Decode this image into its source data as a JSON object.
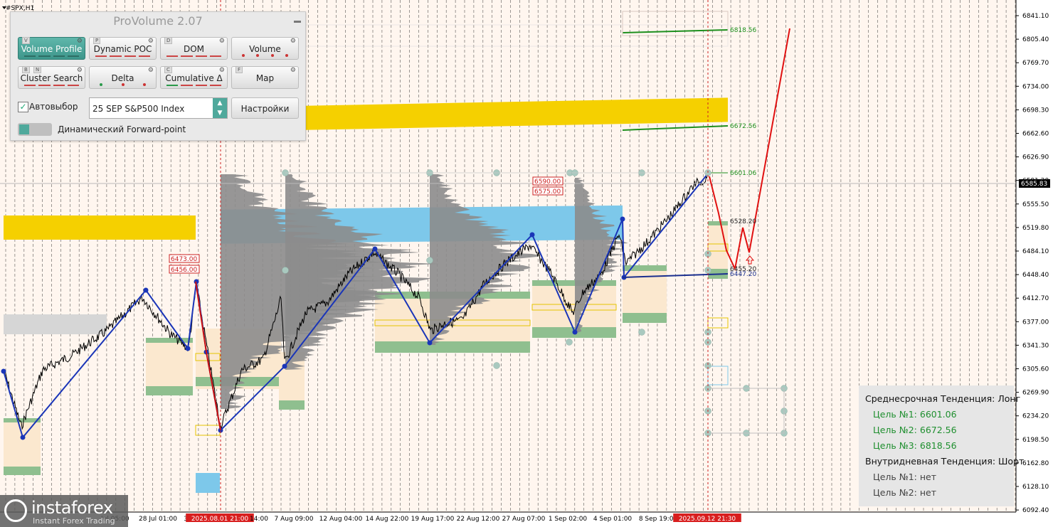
{
  "symbol": "#SPX,H1",
  "panel": {
    "title": "ProVolume 2.07",
    "buttons": [
      {
        "key": "V",
        "label": "Volume Profile"
      },
      {
        "key": "P",
        "label": "Dynamic POC"
      },
      {
        "key": "D",
        "label": "DOM"
      },
      {
        "key": "",
        "label": "Volume"
      },
      {
        "key": "B",
        "key2": "N",
        "label": "Cluster Search"
      },
      {
        "key": "",
        "label": "Delta"
      },
      {
        "key": "C",
        "label": "Cumulative Δ"
      },
      {
        "key": "F",
        "label": "Map"
      }
    ],
    "autoselect_label": "Автовыбор",
    "instrument": "25 SEP S&P500 Index",
    "settings_label": "Настройки",
    "forward_label": "Динамический Forward-point"
  },
  "price_axis": [
    "6841.10",
    "6805.40",
    "6769.70",
    "6734.00",
    "6698.30",
    "6662.60",
    "6626.90",
    "6591.20",
    "6555.50",
    "6519.80",
    "6484.10",
    "6448.40",
    "6412.70",
    "6377.00",
    "6341.30",
    "6305.60",
    "6269.90",
    "6234.20",
    "6198.50",
    "6162.80",
    "6128.10",
    "6092.40"
  ],
  "current_price": "6585.83",
  "time_axis": [
    "28 Jul 01:00",
    "30",
    "2025.08.01 21:00",
    "14:00",
    "7 Aug 09:00",
    "12 Aug 04:00",
    "14 Aug 22:00",
    "19 Aug 17:00",
    "22 Aug 12:00",
    "27 Aug 07:00",
    "1 Sep 02:00",
    "4 Sep 01:00",
    "8 Sep 19:00",
    "2025.09.12 21:30"
  ],
  "time_axis_partial_left": "Jul 05:00",
  "levels": {
    "target3": "6818.56",
    "target2": "6672.56",
    "target1": "6601.06",
    "l6528": "6528.20",
    "l6455": "6455.20",
    "l6447": "6447.20",
    "r6590": "6590.00",
    "r6575": "6575.00",
    "r6473": "6473.00",
    "r6456": "6456.00"
  },
  "info": {
    "mid_trend": "Среднесрочная Тенденция: Лонг",
    "targets": [
      "Цель №1: 6601.06",
      "Цель №2: 6672.56",
      "Цель №3: 6818.56"
    ],
    "intraday_trend": "Внутридневная Тенденция: Шорт",
    "intraday_targets": [
      "Цель №1: нет",
      "Цель №2: нет"
    ]
  },
  "logo": {
    "brand": "instaforex",
    "tagline": "Instant Forex Trading"
  },
  "colors": {
    "background": "#fff6ef",
    "zone_yellow": "#f5d000",
    "zone_blue": "#7dc8ea",
    "zone_green": "#8fbf8f",
    "zigzag": "#1a35b8",
    "forecast": "#e01010",
    "accent": "#4fa99c"
  }
}
